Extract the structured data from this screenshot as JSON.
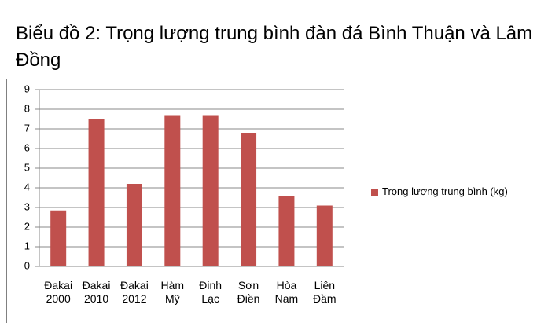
{
  "chart_data": {
    "type": "bar",
    "title": "Biểu đồ 2: Trọng lượng trung bình đàn đá Bình Thuận và Lâm Đồng",
    "categories": [
      "Đakai 2000",
      "Đakai 2010",
      "Đakai 2012",
      "Hàm Mỹ",
      "Đinh Lạc",
      "Sơn Điền",
      "Hòa Nam",
      "Liên Đầm"
    ],
    "series": [
      {
        "name": "Trọng lượng trung bình (kg)",
        "color": "#c0504d",
        "values": [
          2.85,
          7.5,
          4.2,
          7.7,
          7.7,
          6.8,
          3.6,
          3.1
        ]
      }
    ],
    "ylim": [
      0,
      9
    ],
    "yticks": [
      0,
      1,
      2,
      3,
      4,
      5,
      6,
      7,
      8,
      9
    ],
    "grid": true,
    "legend": "right"
  }
}
